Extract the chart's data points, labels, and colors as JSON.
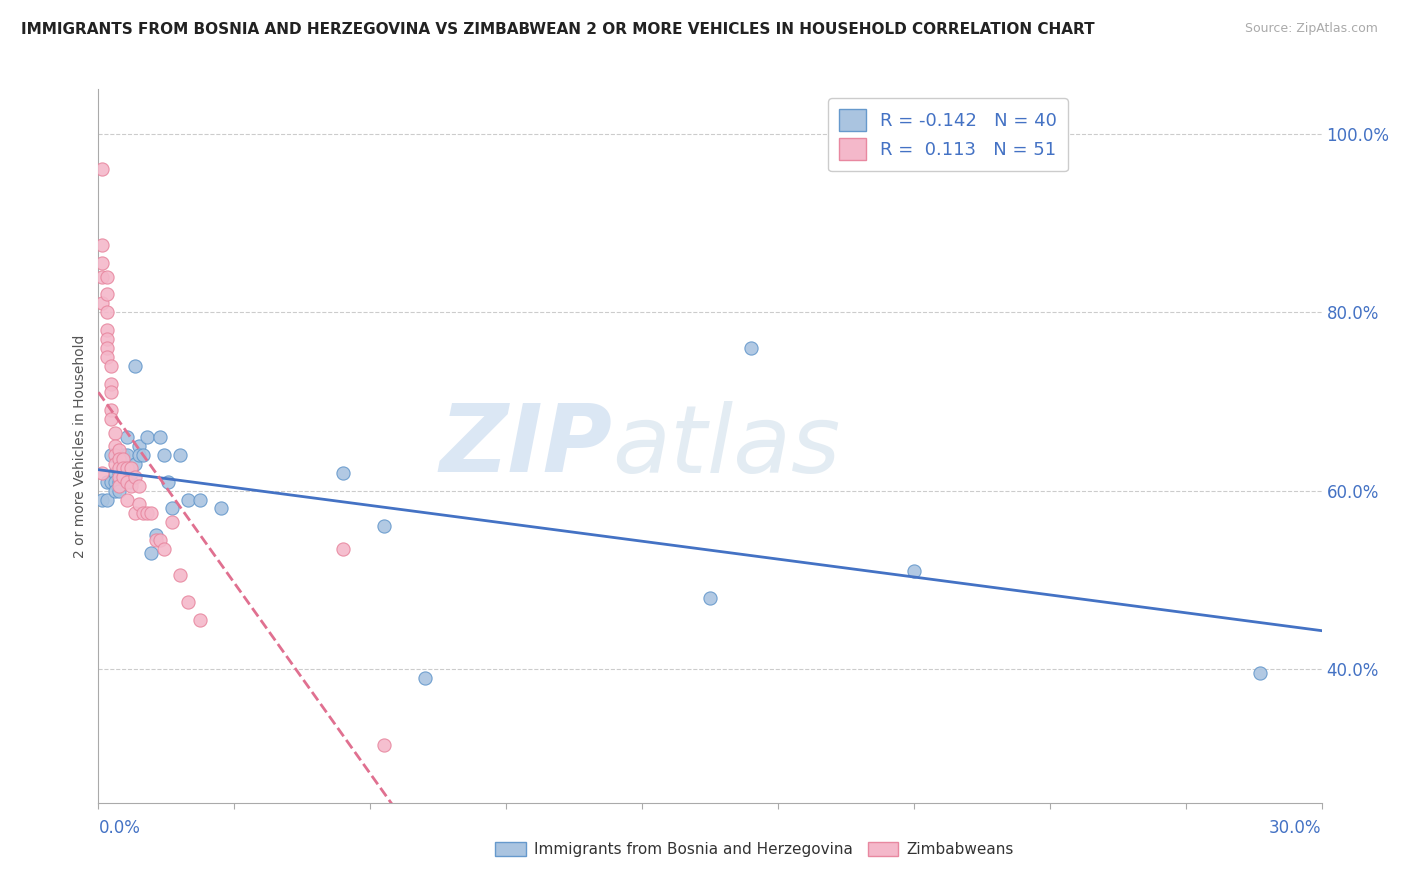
{
  "title": "IMMIGRANTS FROM BOSNIA AND HERZEGOVINA VS ZIMBABWEAN 2 OR MORE VEHICLES IN HOUSEHOLD CORRELATION CHART",
  "source": "Source: ZipAtlas.com",
  "ylabel": "2 or more Vehicles in Household",
  "right_yticks": [
    "40.0%",
    "60.0%",
    "80.0%",
    "100.0%"
  ],
  "right_ytick_vals": [
    0.4,
    0.6,
    0.8,
    1.0
  ],
  "xmin": 0.0,
  "xmax": 0.3,
  "ymin": 0.25,
  "ymax": 1.05,
  "legend_r1": "R = -0.142",
  "legend_n1": "N = 40",
  "legend_r2": "R =  0.113",
  "legend_n2": "N = 51",
  "blue_color": "#aac4e0",
  "pink_color": "#f4b8ca",
  "blue_edge_color": "#6699cc",
  "pink_edge_color": "#e888a0",
  "blue_line_color": "#4472c4",
  "pink_line_color": "#e07090",
  "label_color": "#4472c4",
  "blue_scatter_x": [
    0.001,
    0.002,
    0.002,
    0.003,
    0.003,
    0.004,
    0.004,
    0.004,
    0.005,
    0.005,
    0.005,
    0.006,
    0.006,
    0.007,
    0.007,
    0.008,
    0.008,
    0.009,
    0.009,
    0.01,
    0.01,
    0.011,
    0.012,
    0.013,
    0.014,
    0.015,
    0.016,
    0.017,
    0.018,
    0.02,
    0.022,
    0.025,
    0.03,
    0.06,
    0.07,
    0.08,
    0.15,
    0.16,
    0.2,
    0.285
  ],
  "blue_scatter_y": [
    0.59,
    0.61,
    0.59,
    0.64,
    0.61,
    0.62,
    0.61,
    0.6,
    0.62,
    0.61,
    0.6,
    0.64,
    0.62,
    0.64,
    0.66,
    0.61,
    0.62,
    0.74,
    0.63,
    0.65,
    0.64,
    0.64,
    0.66,
    0.53,
    0.55,
    0.66,
    0.64,
    0.61,
    0.58,
    0.64,
    0.59,
    0.59,
    0.58,
    0.62,
    0.56,
    0.39,
    0.48,
    0.76,
    0.51,
    0.395
  ],
  "pink_scatter_x": [
    0.001,
    0.001,
    0.001,
    0.001,
    0.001,
    0.001,
    0.002,
    0.002,
    0.002,
    0.002,
    0.002,
    0.002,
    0.002,
    0.003,
    0.003,
    0.003,
    0.003,
    0.003,
    0.004,
    0.004,
    0.004,
    0.004,
    0.005,
    0.005,
    0.005,
    0.005,
    0.005,
    0.006,
    0.006,
    0.006,
    0.007,
    0.007,
    0.007,
    0.008,
    0.008,
    0.009,
    0.009,
    0.01,
    0.01,
    0.011,
    0.012,
    0.013,
    0.014,
    0.015,
    0.016,
    0.018,
    0.02,
    0.022,
    0.025,
    0.06,
    0.07
  ],
  "pink_scatter_y": [
    0.96,
    0.875,
    0.855,
    0.84,
    0.81,
    0.62,
    0.84,
    0.82,
    0.8,
    0.78,
    0.77,
    0.76,
    0.75,
    0.74,
    0.72,
    0.71,
    0.69,
    0.68,
    0.665,
    0.65,
    0.64,
    0.63,
    0.645,
    0.635,
    0.625,
    0.615,
    0.605,
    0.635,
    0.625,
    0.615,
    0.625,
    0.61,
    0.59,
    0.625,
    0.605,
    0.615,
    0.575,
    0.605,
    0.585,
    0.575,
    0.575,
    0.575,
    0.545,
    0.545,
    0.535,
    0.565,
    0.505,
    0.475,
    0.455,
    0.535,
    0.315
  ]
}
